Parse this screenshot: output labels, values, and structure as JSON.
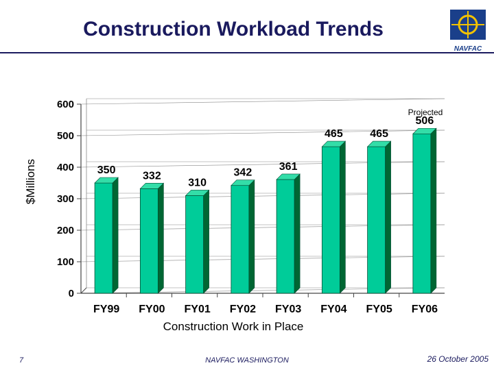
{
  "slide": {
    "title": "Construction Workload Trends",
    "logo_text": "NAVFAC",
    "page_number": "7",
    "footer_center": "NAVFAC WASHINGTON",
    "footer_date": "26 October 2005"
  },
  "chart_data": {
    "type": "bar",
    "title": "",
    "xlabel": "Construction Work in Place",
    "ylabel": "$Millions",
    "categories": [
      "FY99",
      "FY00",
      "FY01",
      "FY02",
      "FY03",
      "FY04",
      "FY05",
      "FY06"
    ],
    "values": [
      350,
      332,
      310,
      342,
      361,
      465,
      465,
      506
    ],
    "data_labels": [
      "350",
      "332",
      "310",
      "342",
      "361",
      "465",
      "465",
      "506"
    ],
    "ylim": [
      0,
      600
    ],
    "yticks": [
      0,
      100,
      200,
      300,
      400,
      500,
      600
    ],
    "ytick_labels": [
      "0",
      "100",
      "200",
      "300",
      "400",
      "500",
      "600"
    ],
    "annotation": "Projected",
    "grid": true,
    "legend": "none",
    "colors": {
      "bar_front": "#00cc99",
      "bar_side": "#006633",
      "bar_top": "#33dda8",
      "axis": "#444444",
      "text": "#000000"
    }
  }
}
